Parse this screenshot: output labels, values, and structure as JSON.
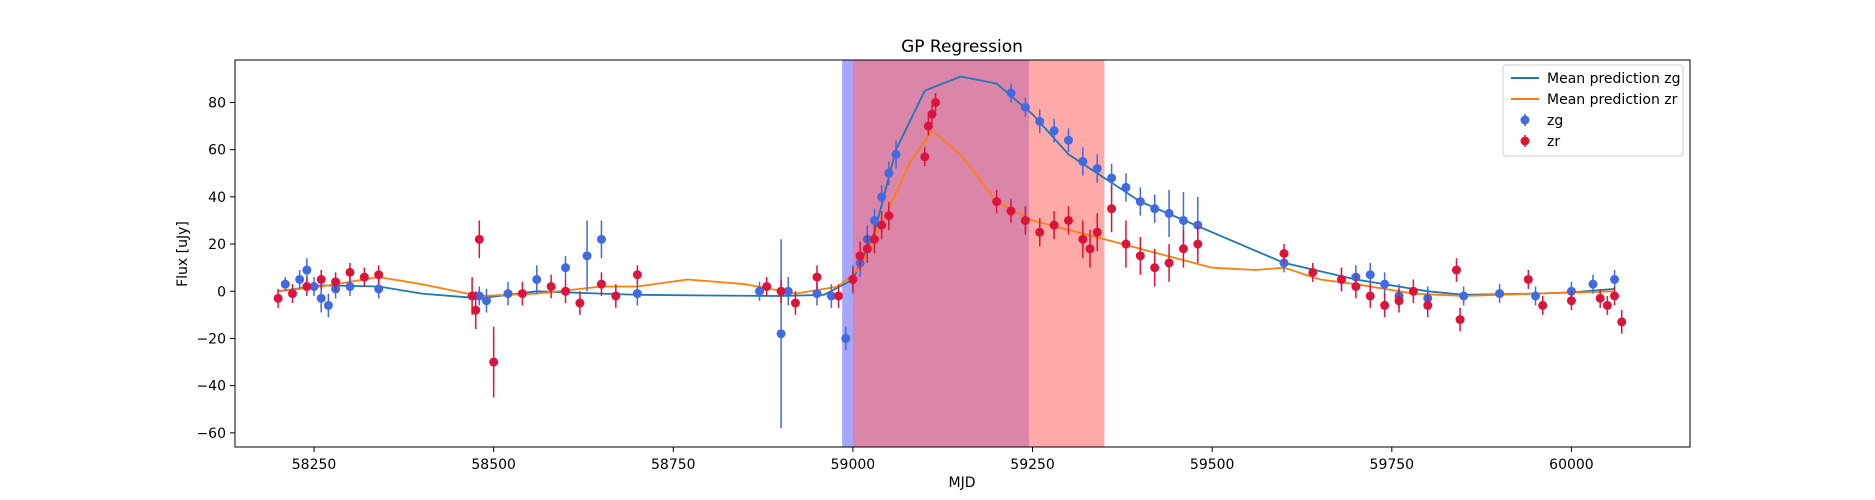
{
  "chart_data": {
    "type": "scatter",
    "title": "GP Regression",
    "xlabel": "MJD",
    "ylabel": "Flux [uJy]",
    "xlim": [
      58140,
      60165
    ],
    "ylim": [
      -66,
      98
    ],
    "xticks": [
      58250,
      58500,
      58750,
      59000,
      59250,
      59500,
      59750,
      60000
    ],
    "yticks": [
      -60,
      -40,
      -20,
      0,
      20,
      40,
      60,
      80
    ],
    "legend_position": "top-right",
    "shaded_regions": [
      {
        "x0": 58985,
        "x1": 59245,
        "color": "#8080ff",
        "opacity": 0.7
      },
      {
        "x0": 59000,
        "x1": 59350,
        "color": "#ff6f6f",
        "opacity": 0.6
      }
    ],
    "series": [
      {
        "name": "Mean prediction zg",
        "kind": "line",
        "color": "#1f77b4",
        "x": [
          58200,
          58260,
          58340,
          58400,
          58480,
          58560,
          58650,
          58700,
          58800,
          58900,
          58960,
          59000,
          59030,
          59060,
          59100,
          59150,
          59200,
          59250,
          59300,
          59400,
          59500,
          59600,
          59700,
          59800,
          59850,
          59950,
          60000,
          60060
        ],
        "y": [
          0,
          2.5,
          2,
          -1,
          -3,
          0,
          -1,
          -1.5,
          -1.8,
          -2,
          -1.5,
          5,
          25,
          60,
          85,
          91,
          88,
          75,
          58,
          38,
          25,
          12,
          5,
          0,
          -1.5,
          -1,
          -0.5,
          1
        ]
      },
      {
        "name": "Mean prediction zr",
        "kind": "line",
        "color": "#ff7f0e",
        "x": [
          58200,
          58260,
          58340,
          58400,
          58480,
          58560,
          58650,
          58700,
          58770,
          58850,
          58920,
          58980,
          59010,
          59050,
          59080,
          59110,
          59150,
          59200,
          59250,
          59300,
          59350,
          59400,
          59500,
          59560,
          59600,
          59650,
          59700,
          59780,
          59850,
          59950,
          60060
        ],
        "y": [
          0,
          2,
          6,
          3,
          -2,
          -1,
          2,
          2,
          5,
          3,
          -1,
          2,
          10,
          35,
          55,
          68,
          58,
          38,
          30,
          26,
          22,
          18,
          10,
          9,
          10,
          5,
          3,
          -1,
          -2,
          -1,
          0
        ]
      },
      {
        "name": "zg",
        "kind": "errorbar",
        "color": "#4169e1",
        "x": [
          58210,
          58230,
          58240,
          58250,
          58260,
          58270,
          58280,
          58300,
          58340,
          58480,
          58490,
          58520,
          58560,
          58600,
          58630,
          58650,
          58700,
          58870,
          58900,
          58910,
          58950,
          58970,
          58990,
          59000,
          59010,
          59020,
          59030,
          59040,
          59050,
          59060,
          59220,
          59240,
          59260,
          59280,
          59300,
          59320,
          59340,
          59360,
          59380,
          59400,
          59420,
          59440,
          59460,
          59480,
          59600,
          59680,
          59700,
          59720,
          59740,
          59760,
          59800,
          59850,
          59900,
          59950,
          60000,
          60030,
          60060
        ],
        "y": [
          3,
          5,
          9,
          2,
          -3,
          -6,
          1,
          2,
          1,
          -2,
          -4,
          -1,
          5,
          10,
          15,
          22,
          -1,
          0,
          -18,
          0,
          -1,
          -2,
          -20,
          5,
          12,
          22,
          30,
          40,
          50,
          58,
          84,
          78,
          72,
          68,
          64,
          55,
          52,
          48,
          44,
          38,
          35,
          33,
          30,
          28,
          12,
          5,
          6,
          7,
          3,
          -2,
          -3,
          -2,
          -1,
          -2,
          0,
          3,
          5
        ],
        "yerr": [
          3,
          4,
          5,
          4,
          6,
          5,
          4,
          4,
          4,
          4,
          5,
          5,
          6,
          5,
          15,
          8,
          5,
          4,
          40,
          6,
          5,
          5,
          5,
          6,
          6,
          6,
          5,
          5,
          5,
          6,
          4,
          4,
          5,
          5,
          5,
          6,
          6,
          6,
          6,
          6,
          6,
          10,
          12,
          12,
          4,
          5,
          5,
          5,
          5,
          5,
          5,
          4,
          4,
          4,
          4,
          4,
          4
        ]
      },
      {
        "name": "zr",
        "kind": "errorbar",
        "color": "#dc143c",
        "x": [
          58200,
          58220,
          58240,
          58260,
          58280,
          58300,
          58320,
          58340,
          58470,
          58475,
          58480,
          58500,
          58540,
          58580,
          58600,
          58620,
          58650,
          58670,
          58700,
          58880,
          58900,
          58920,
          58950,
          58980,
          59000,
          59010,
          59020,
          59030,
          59040,
          59050,
          59100,
          59105,
          59110,
          59115,
          59200,
          59220,
          59240,
          59260,
          59280,
          59300,
          59320,
          59330,
          59340,
          59360,
          59380,
          59400,
          59420,
          59440,
          59460,
          59480,
          59600,
          59640,
          59680,
          59700,
          59720,
          59740,
          59760,
          59780,
          59800,
          59840,
          59845,
          59940,
          59960,
          60000,
          60040,
          60050,
          60060,
          60070
        ],
        "y": [
          -3,
          -1,
          2,
          5,
          4,
          8,
          6,
          7,
          -2,
          -8,
          22,
          -30,
          -1,
          2,
          0,
          -5,
          3,
          -2,
          7,
          2,
          0,
          -5,
          6,
          -2,
          5,
          15,
          18,
          22,
          28,
          32,
          57,
          70,
          75,
          80,
          38,
          34,
          30,
          25,
          28,
          30,
          22,
          18,
          25,
          35,
          20,
          15,
          10,
          12,
          18,
          20,
          16,
          8,
          5,
          2,
          -2,
          -6,
          -4,
          0,
          -6,
          9,
          -12,
          5,
          -6,
          -4,
          -3,
          -6,
          -2,
          -13
        ],
        "yerr": [
          4,
          4,
          4,
          4,
          4,
          4,
          4,
          4,
          8,
          8,
          8,
          15,
          5,
          5,
          5,
          5,
          5,
          5,
          4,
          4,
          5,
          5,
          5,
          5,
          5,
          6,
          6,
          6,
          6,
          6,
          4,
          4,
          4,
          4,
          5,
          5,
          6,
          6,
          6,
          6,
          8,
          8,
          8,
          10,
          10,
          8,
          8,
          8,
          8,
          8,
          4,
          4,
          5,
          5,
          5,
          5,
          5,
          5,
          5,
          5,
          5,
          4,
          4,
          4,
          4,
          4,
          4,
          5
        ]
      }
    ]
  }
}
